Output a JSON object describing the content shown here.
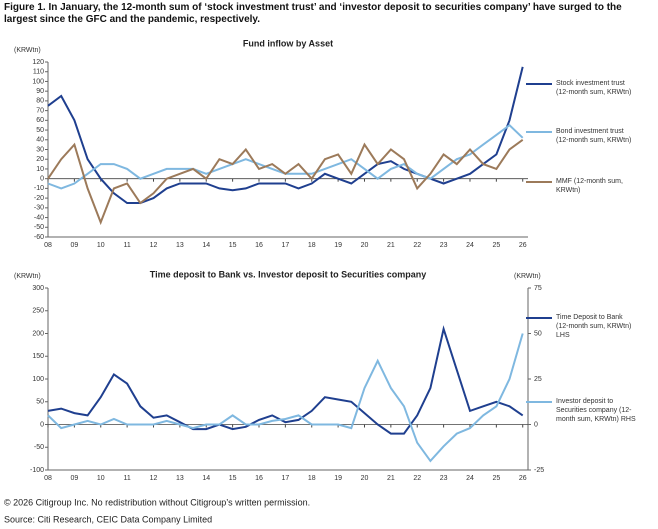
{
  "header": {
    "title": "Figure 1. In January, the 12-month sum of ‘stock investment trust’ and ‘investor deposit to securities company’ have surged to the largest since the GFC and the pandemic, respectively."
  },
  "footer": {
    "copyright": "© 2026 Citigroup Inc. No redistribution without Citigroup’s written permission.",
    "source": "Source: Citi Research, CEIC Data Company Limited"
  },
  "chart_data": [
    {
      "type": "line",
      "title": "Fund inflow by Asset",
      "y_axis_label": "(KRWtn)",
      "xlim": [
        2008,
        2026.2
      ],
      "xticks": [
        {
          "value": 2008,
          "label": "08"
        },
        {
          "value": 2009,
          "label": "09"
        },
        {
          "value": 2010,
          "label": "10"
        },
        {
          "value": 2011,
          "label": "11"
        },
        {
          "value": 2012,
          "label": "12"
        },
        {
          "value": 2013,
          "label": "13"
        },
        {
          "value": 2014,
          "label": "14"
        },
        {
          "value": 2015,
          "label": "15"
        },
        {
          "value": 2016,
          "label": "16"
        },
        {
          "value": 2017,
          "label": "17"
        },
        {
          "value": 2018,
          "label": "18"
        },
        {
          "value": 2019,
          "label": "19"
        },
        {
          "value": 2020,
          "label": "20"
        },
        {
          "value": 2021,
          "label": "21"
        },
        {
          "value": 2022,
          "label": "22"
        },
        {
          "value": 2023,
          "label": "23"
        },
        {
          "value": 2024,
          "label": "24"
        },
        {
          "value": 2025,
          "label": "25"
        },
        {
          "value": 2026,
          "label": "26"
        }
      ],
      "ylim": [
        -60,
        120
      ],
      "yticks": [
        -60,
        -50,
        -40,
        -30,
        -20,
        -10,
        0,
        10,
        20,
        30,
        40,
        50,
        60,
        70,
        80,
        90,
        100,
        110,
        120
      ],
      "x": [
        2008,
        2008.5,
        2009,
        2009.5,
        2010,
        2010.5,
        2011,
        2011.5,
        2012,
        2012.5,
        2013,
        2013.5,
        2014,
        2014.5,
        2015,
        2015.5,
        2016,
        2016.5,
        2017,
        2017.5,
        2018,
        2018.5,
        2019,
        2019.5,
        2020,
        2020.5,
        2021,
        2021.5,
        2022,
        2022.5,
        2023,
        2023.5,
        2024,
        2024.5,
        2025,
        2025.5,
        2026
      ],
      "series": [
        {
          "name": "Stock investment trust (12-month sum, KRWtn)",
          "color": "#1f3f8f",
          "values": [
            75,
            85,
            60,
            20,
            0,
            -15,
            -25,
            -25,
            -20,
            -10,
            -5,
            -5,
            -5,
            -10,
            -12,
            -10,
            -5,
            -5,
            -5,
            -10,
            -5,
            5,
            0,
            -5,
            5,
            15,
            18,
            10,
            5,
            0,
            -5,
            0,
            5,
            15,
            25,
            60,
            115
          ]
        },
        {
          "name": "Bond investment trust (12-month sum, KRWtn)",
          "color": "#7fb8e0",
          "values": [
            -5,
            -10,
            -5,
            5,
            15,
            15,
            10,
            0,
            5,
            10,
            10,
            10,
            5,
            10,
            15,
            20,
            15,
            10,
            5,
            5,
            5,
            10,
            15,
            20,
            10,
            0,
            10,
            15,
            5,
            0,
            10,
            20,
            25,
            35,
            45,
            55,
            42
          ]
        },
        {
          "name": "MMF (12-month sum, KRWtn)",
          "color": "#9c7a5a",
          "values": [
            0,
            20,
            35,
            -10,
            -45,
            -10,
            -5,
            -25,
            -15,
            0,
            5,
            10,
            0,
            20,
            15,
            30,
            10,
            15,
            5,
            15,
            0,
            20,
            25,
            5,
            35,
            15,
            30,
            20,
            -10,
            5,
            25,
            15,
            30,
            15,
            10,
            30,
            40
          ]
        }
      ]
    },
    {
      "type": "line",
      "title": "Time deposit to Bank vs. Investor deposit to Securities company",
      "y_axis_label": "(KRWtn)",
      "y2_axis_label": "(KRWtn)",
      "xlim": [
        2008,
        2026.2
      ],
      "xticks": [
        {
          "value": 2008,
          "label": "08"
        },
        {
          "value": 2009,
          "label": "09"
        },
        {
          "value": 2010,
          "label": "10"
        },
        {
          "value": 2011,
          "label": "11"
        },
        {
          "value": 2012,
          "label": "12"
        },
        {
          "value": 2013,
          "label": "13"
        },
        {
          "value": 2014,
          "label": "14"
        },
        {
          "value": 2015,
          "label": "15"
        },
        {
          "value": 2016,
          "label": "16"
        },
        {
          "value": 2017,
          "label": "17"
        },
        {
          "value": 2018,
          "label": "18"
        },
        {
          "value": 2019,
          "label": "19"
        },
        {
          "value": 2020,
          "label": "20"
        },
        {
          "value": 2021,
          "label": "21"
        },
        {
          "value": 2022,
          "label": "22"
        },
        {
          "value": 2023,
          "label": "23"
        },
        {
          "value": 2024,
          "label": "24"
        },
        {
          "value": 2025,
          "label": "25"
        },
        {
          "value": 2026,
          "label": "26"
        }
      ],
      "ylim": [
        -100,
        300
      ],
      "yticks": [
        -100,
        -50,
        0,
        50,
        100,
        150,
        200,
        250,
        300
      ],
      "y2lim": [
        -25,
        75
      ],
      "y2ticks": [
        -25,
        0,
        25,
        50,
        75
      ],
      "x": [
        2008,
        2008.5,
        2009,
        2009.5,
        2010,
        2010.5,
        2011,
        2011.5,
        2012,
        2012.5,
        2013,
        2013.5,
        2014,
        2014.5,
        2015,
        2015.5,
        2016,
        2016.5,
        2017,
        2017.5,
        2018,
        2018.5,
        2019,
        2019.5,
        2020,
        2020.5,
        2021,
        2021.5,
        2022,
        2022.5,
        2023,
        2023.5,
        2024,
        2024.5,
        2025,
        2025.5,
        2026
      ],
      "series": [
        {
          "name": "Time Deposit to Bank (12-month sum, KRWtn) LHS",
          "color": "#1f3f8f",
          "values": [
            30,
            35,
            25,
            20,
            60,
            110,
            90,
            40,
            15,
            20,
            5,
            -10,
            -10,
            0,
            -10,
            -5,
            10,
            20,
            5,
            10,
            30,
            60,
            55,
            50,
            25,
            0,
            -20,
            -20,
            20,
            80,
            210,
            120,
            30,
            40,
            50,
            40,
            20
          ]
        },
        {
          "name": "Investor deposit to Securities company (12-month sum, KRWtn) RHS",
          "color": "#7fb8e0",
          "axis": "y2",
          "values": [
            5,
            -2,
            0,
            2,
            0,
            3,
            0,
            0,
            0,
            2,
            0,
            -2,
            0,
            0,
            5,
            0,
            0,
            2,
            3,
            5,
            0,
            0,
            0,
            -2,
            20,
            35,
            20,
            10,
            -10,
            -20,
            -12,
            -5,
            -2,
            5,
            10,
            25,
            50
          ]
        }
      ]
    }
  ]
}
